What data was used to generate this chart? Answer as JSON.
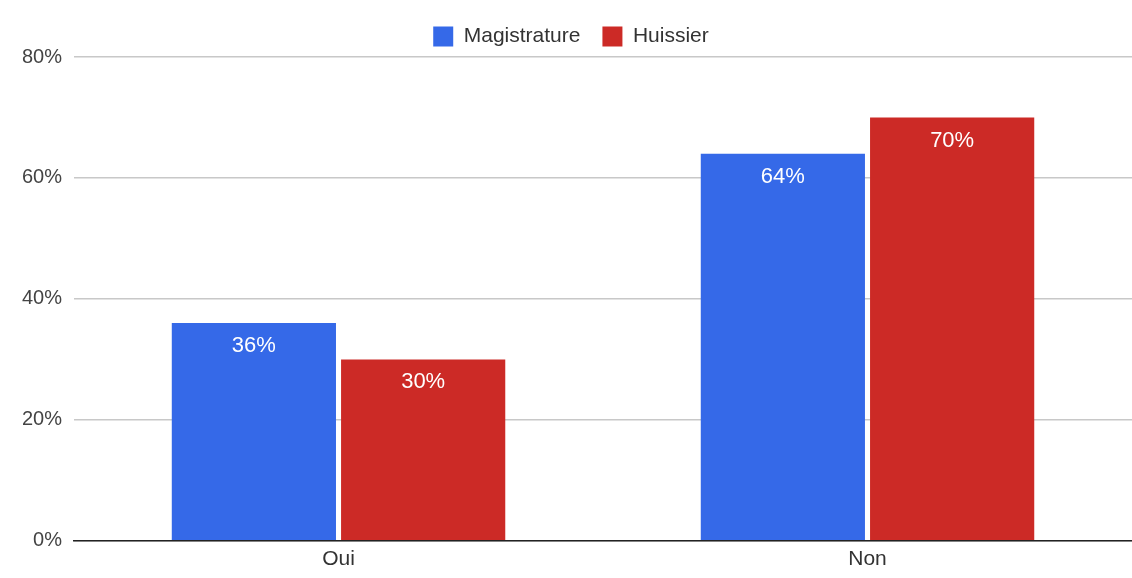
{
  "chart_data": {
    "type": "bar",
    "categories": [
      "Oui",
      "Non"
    ],
    "series": [
      {
        "name": "Magistrature",
        "color": "#3569e8",
        "values": [
          36,
          64
        ],
        "value_labels": [
          "36%",
          "64%"
        ]
      },
      {
        "name": "Huissier",
        "color": "#cc2a26",
        "values": [
          30,
          70
        ],
        "value_labels": [
          "30%",
          "70%"
        ]
      }
    ],
    "ylim": [
      0,
      80
    ],
    "yticks": [
      {
        "value": 0,
        "label": "0%"
      },
      {
        "value": 20,
        "label": "20%"
      },
      {
        "value": 40,
        "label": "40%"
      },
      {
        "value": 60,
        "label": "60%"
      },
      {
        "value": 80,
        "label": "80%"
      }
    ],
    "grid": "y",
    "legend": "top"
  }
}
